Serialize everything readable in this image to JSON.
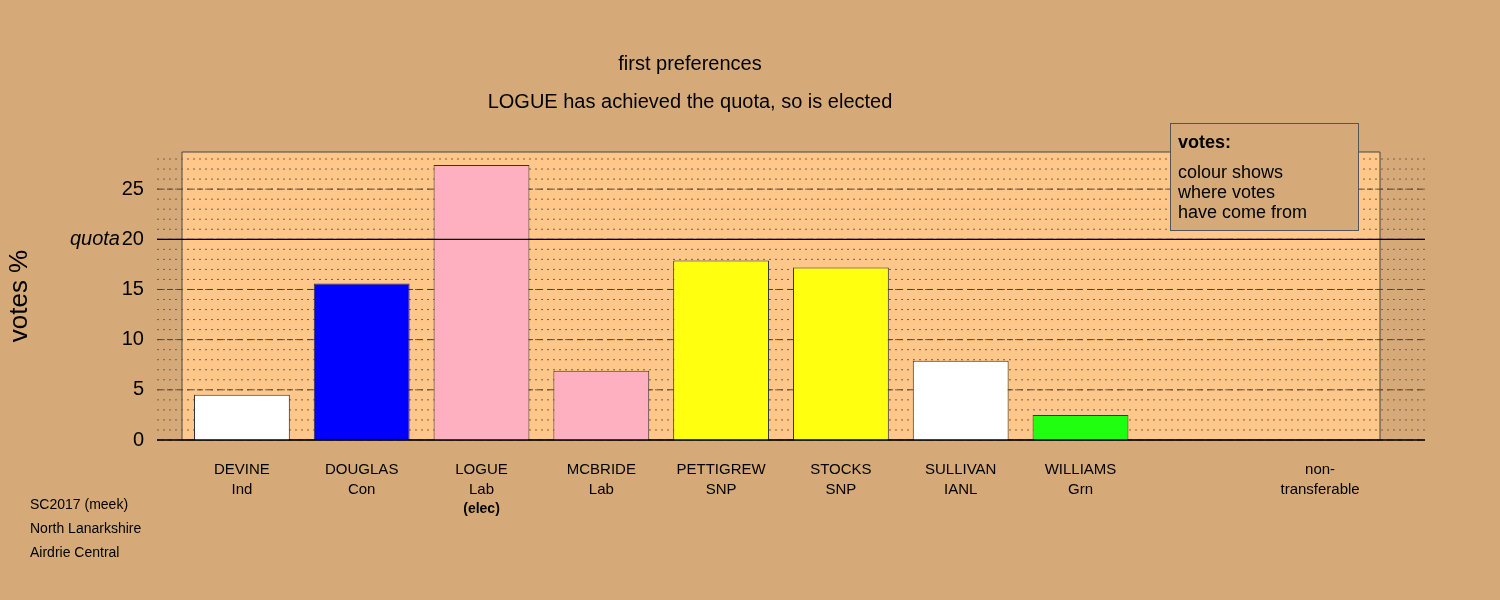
{
  "chart_data": {
    "type": "bar",
    "title": "first preferences",
    "subtitle": "LOGUE has achieved the quota, so is elected",
    "ylabel": "votes %",
    "categories": [
      "DEVINE\nInd",
      "DOUGLAS\nCon",
      "LOGUE\nLab\n(elec)",
      "MCBRIDE\nLab",
      "PETTIGREW\nSNP",
      "STOCKS\nSNP",
      "SULLIVAN\nIANL",
      "WILLIAMS\nGrn",
      null,
      "non-\ntransferable"
    ],
    "values": [
      4.5,
      15.6,
      27.4,
      6.9,
      17.9,
      17.2,
      7.9,
      2.5,
      null,
      0
    ],
    "colors": [
      "#ffffff",
      "#0000ff",
      "#ffb0c0",
      "#ffb0c0",
      "#ffff10",
      "#ffff10",
      "#ffffff",
      "#20ff10",
      "#ffffff",
      "#ffffff"
    ],
    "ylim": [
      0,
      28.7
    ],
    "yticks": [
      0,
      5,
      10,
      15,
      20,
      25
    ],
    "grid": "y",
    "ref_lines": [
      {
        "axis": "y",
        "value": 20,
        "label": "quota"
      }
    ],
    "legend_title": "votes:",
    "annotations": [
      "colour shows\nwhere votes\nhave come from",
      "SC2017 (meek)\nNorth Lanarkshire\nAirdrie Central"
    ]
  }
}
